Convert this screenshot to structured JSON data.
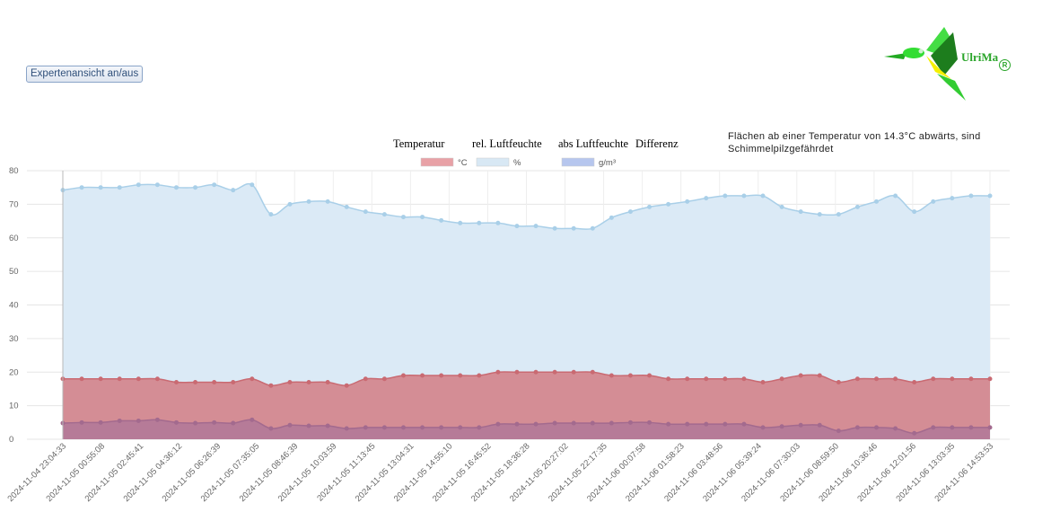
{
  "toolbar": {
    "expert_toggle_label": "Expertenansicht an/aus"
  },
  "logo": {
    "text": "UlriMa",
    "registered": "R"
  },
  "tabs": [
    {
      "label": "Temperatur"
    },
    {
      "label": "rel. Luftfeuchte"
    },
    {
      "label": "abs Luftfeuchte"
    },
    {
      "label": "Differenz"
    }
  ],
  "note": "Flächen ab einer Temperatur von 14.3°C abwärts, sind Schimmelpilzgefährdet",
  "chart_data": {
    "type": "area",
    "ylim": [
      0,
      80
    ],
    "yticks": [
      0,
      10,
      20,
      30,
      40,
      50,
      60,
      70,
      80
    ],
    "grid": true,
    "legend_position": "top-center",
    "x_tick_labels": [
      "2024-11-04 23:04:33",
      "2024-11-05 00:55:08",
      "2024-11-05 02:45:41",
      "2024-11-05 04:36:12",
      "2024-11-05 06:26:39",
      "2024-11-05 07:35:05",
      "2024-11-05 08:46:39",
      "2024-11-05 10:03:59",
      "2024-11-05 11:13:45",
      "2024-11-05 13:04:31",
      "2024-11-05 14:55:10",
      "2024-11-05 16:45:52",
      "2024-11-05 18:36:28",
      "2024-11-05 20:27:02",
      "2024-11-05 22:17:35",
      "2024-11-06 00:07:58",
      "2024-11-06 01:58:23",
      "2024-11-06 03:48:56",
      "2024-11-06 05:39:24",
      "2024-11-06 07:30:03",
      "2024-11-06 08:59:50",
      "2024-11-06 10:36:46",
      "2024-11-06 12:01:56",
      "2024-11-06 13:03:35",
      "2024-11-06 14:53:53"
    ],
    "series": [
      {
        "name": "%",
        "color": "#a9cfe8",
        "fill": "#dbeaf6",
        "values": [
          74.2,
          75.0,
          75.0,
          75.0,
          75.8,
          75.8,
          75.0,
          75.0,
          75.8,
          74.2,
          75.8,
          67.0,
          70.0,
          70.8,
          70.8,
          69.2,
          67.8,
          67.0,
          66.2,
          66.2,
          65.2,
          64.4,
          64.4,
          64.4,
          63.5,
          63.5,
          62.8,
          62.8,
          62.8,
          66.0,
          67.8,
          69.2,
          70.0,
          70.8,
          71.8,
          72.5,
          72.5,
          72.5,
          69.2,
          67.8,
          67.0,
          67.0,
          69.2,
          70.8,
          72.5,
          67.8,
          70.8,
          71.8,
          72.5,
          72.5
        ]
      },
      {
        "name": "°C",
        "color": "#c96a72",
        "fill": "#d4888f",
        "values": [
          18,
          18,
          18,
          18,
          18,
          18,
          17,
          17,
          17,
          17,
          18,
          16,
          17,
          17,
          17,
          16,
          18,
          18,
          19,
          19,
          19,
          19,
          19,
          20,
          20,
          20,
          20,
          20,
          20,
          19,
          19,
          19,
          18,
          18,
          18,
          18,
          18,
          17,
          18,
          19,
          19,
          17,
          18,
          18,
          18,
          17,
          18,
          18,
          18,
          18
        ]
      },
      {
        "name": "g/m³",
        "color": "#a36a8e",
        "fill": "#b47a98",
        "values": [
          4.8,
          5.0,
          5.0,
          5.5,
          5.5,
          5.8,
          5.0,
          4.8,
          5.0,
          4.8,
          5.8,
          3.2,
          4.2,
          4.0,
          4.0,
          3.2,
          3.5,
          3.5,
          3.5,
          3.5,
          3.5,
          3.5,
          3.5,
          4.5,
          4.5,
          4.5,
          4.8,
          4.8,
          4.8,
          4.8,
          5.0,
          5.0,
          4.5,
          4.5,
          4.5,
          4.5,
          4.5,
          3.5,
          3.8,
          4.2,
          4.2,
          2.5,
          3.5,
          3.5,
          3.2,
          1.8,
          3.5,
          3.5,
          3.5,
          3.5
        ]
      }
    ],
    "legend": [
      {
        "label": "°C",
        "color": "#e8a1a6"
      },
      {
        "label": "%",
        "color": "#d8e8f4"
      },
      {
        "label": "g/m³",
        "color": "#b6c6ee"
      }
    ]
  }
}
